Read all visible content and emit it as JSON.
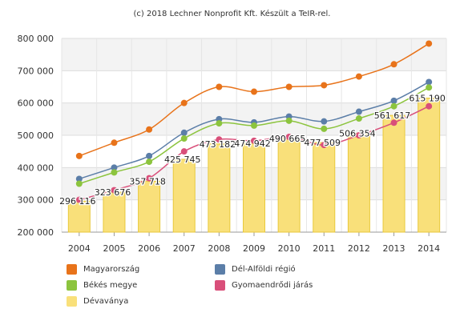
{
  "credit": "(c) 2018 Lechner Nonprofit Kft. Készült a TeIR-rel.",
  "chart_data": {
    "type": "bar+line",
    "categories": [
      "2004",
      "2005",
      "2006",
      "2007",
      "2008",
      "2009",
      "2010",
      "2011",
      "2012",
      "2013",
      "2014"
    ],
    "ylim": [
      200000,
      800000
    ],
    "yticks": [
      200000,
      300000,
      400000,
      500000,
      600000,
      700000,
      800000
    ],
    "ytick_labels": [
      "200 000",
      "300 000",
      "400 000",
      "500 000",
      "600 000",
      "700 000",
      "800 000"
    ],
    "grid": true,
    "legend_position": "bottom",
    "bars": {
      "name": "Dévaványa",
      "color": "#f9e07a",
      "edge": "#e8c93c",
      "values": [
        296116,
        323676,
        357718,
        425745,
        473182,
        474942,
        490665,
        477509,
        506354,
        561617,
        615190
      ],
      "labels": [
        "296 116",
        "323 676",
        "357 718",
        "425 745",
        "473 182",
        "474 942",
        "490 665",
        "477 509",
        "506 354",
        "561 617",
        "615 190"
      ]
    },
    "series": [
      {
        "name": "Magyarország",
        "color": "#e8731a",
        "values": [
          436000,
          477000,
          518000,
          600000,
          650000,
          635000,
          650000,
          655000,
          682000,
          720000,
          784000
        ]
      },
      {
        "name": "Dél-Alföldi régió",
        "color": "#5b7ea8",
        "values": [
          365000,
          400000,
          436000,
          508000,
          550000,
          540000,
          558000,
          543000,
          573000,
          607000,
          665000
        ]
      },
      {
        "name": "Békés megye",
        "color": "#8cc43e",
        "values": [
          350000,
          385000,
          418000,
          490000,
          537000,
          530000,
          545000,
          520000,
          552000,
          590000,
          648000
        ]
      },
      {
        "name": "Gyomaendrődi járás",
        "color": "#d94f7a",
        "values": [
          300000,
          330000,
          367000,
          450000,
          487000,
          483000,
          495000,
          470000,
          500000,
          539000,
          590000
        ]
      }
    ]
  },
  "legend": [
    {
      "label": "Magyarország",
      "color": "#e8731a"
    },
    {
      "label": "Dél-Alföldi régió",
      "color": "#5b7ea8"
    },
    {
      "label": "Békés megye",
      "color": "#8cc43e"
    },
    {
      "label": "Gyomaendrődi járás",
      "color": "#d94f7a"
    },
    {
      "label": "Dévaványa",
      "color": "#f9e07a"
    }
  ]
}
